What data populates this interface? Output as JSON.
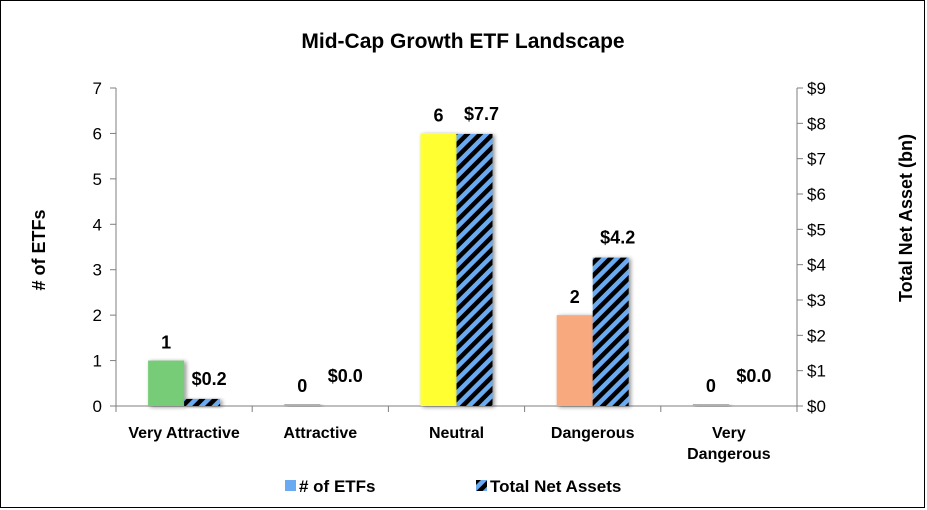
{
  "chart_data": {
    "type": "bar",
    "title": "Mid-Cap Growth ETF Landscape",
    "ylabel": "# of ETFs",
    "y2label": "Total Net Asset (bn)",
    "categories": [
      [
        "Very Attractive"
      ],
      [
        "Attractive"
      ],
      [
        "Neutral"
      ],
      [
        "Dangerous"
      ],
      [
        "Very",
        "Dangerous"
      ]
    ],
    "ylim": [
      0,
      7
    ],
    "y2lim": [
      0,
      9
    ],
    "yticks": [
      "0",
      "1",
      "2",
      "3",
      "4",
      "5",
      "6",
      "7"
    ],
    "y2ticks": [
      "$0",
      "$1",
      "$2",
      "$3",
      "$4",
      "$5",
      "$6",
      "$7",
      "$8",
      "$9"
    ],
    "series": [
      {
        "name": "# of ETFs",
        "axis": "left",
        "values": [
          1,
          0,
          6,
          2,
          0
        ],
        "labels": [
          "1",
          "0",
          "6",
          "2",
          "0"
        ],
        "colors": [
          "#77cc77",
          "#b0b0b0",
          "#ffff33",
          "#f9a97e",
          "#b0b0b0"
        ]
      },
      {
        "name": "Total Net Assets",
        "axis": "right",
        "values": [
          0.2,
          0.0,
          7.7,
          4.2,
          0.0
        ],
        "labels": [
          "$0.2",
          "$0.0",
          "$7.7",
          "$4.2",
          "$0.0"
        ],
        "colors": [
          "#6aaaf0",
          "#6aaaf0",
          "#6aaaf0",
          "#6aaaf0",
          "#6aaaf0"
        ],
        "pattern": "diagonal-stripes"
      }
    ],
    "legend": {
      "position": "bottom",
      "entries": [
        {
          "label": "# of ETFs",
          "color": "#6aaaf0"
        },
        {
          "label": "Total Net Assets",
          "color": "#6aaaf0",
          "pattern": "diagonal-stripes"
        }
      ]
    },
    "grid": false
  }
}
